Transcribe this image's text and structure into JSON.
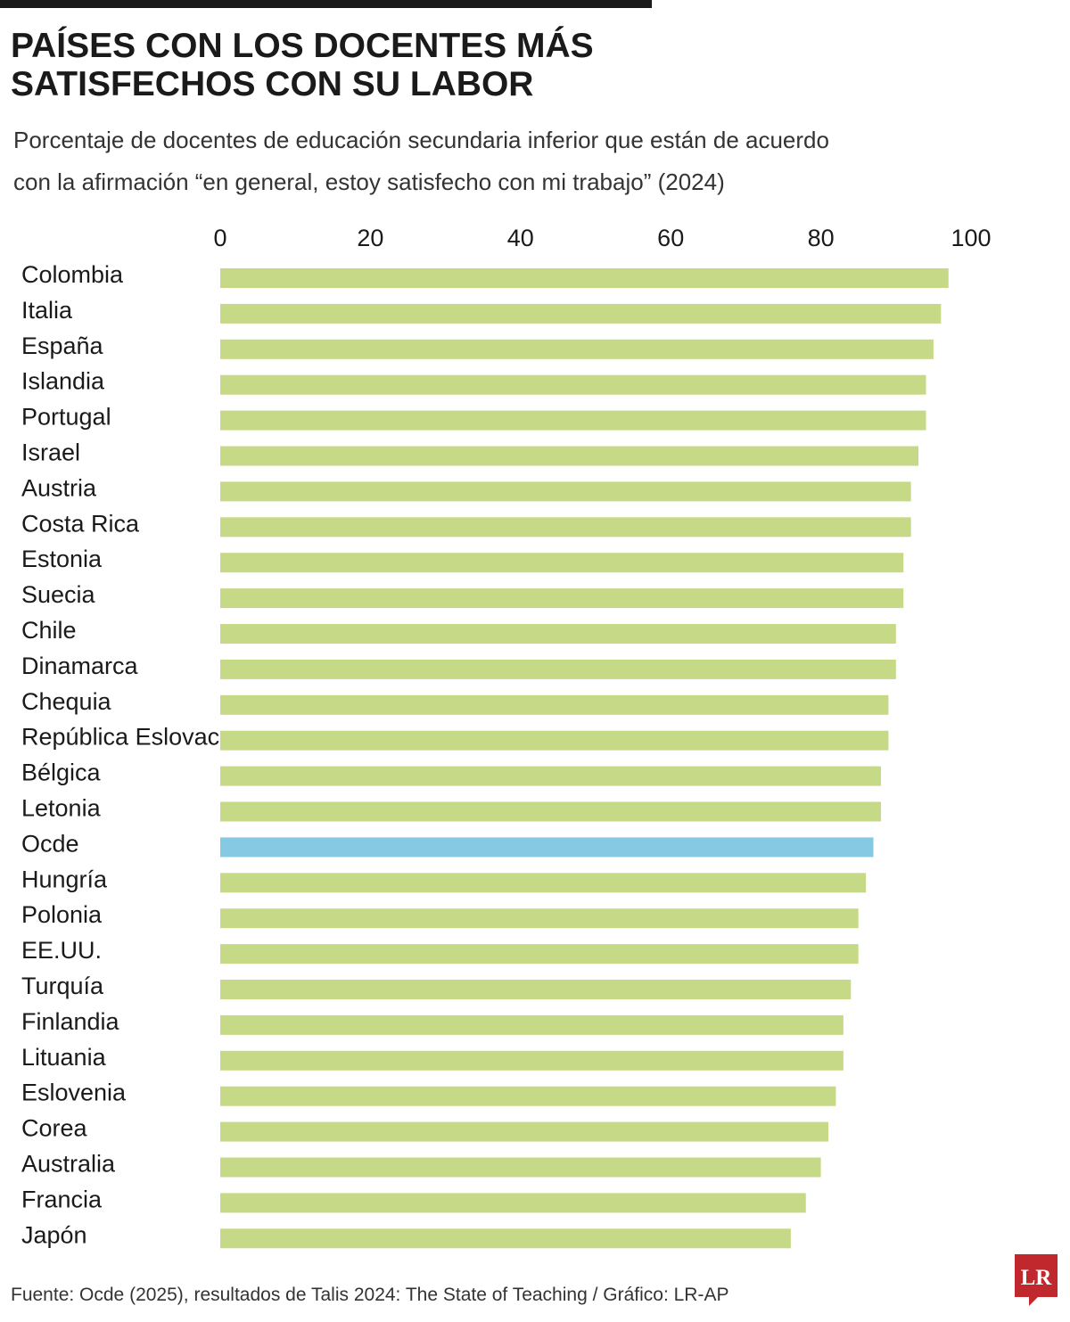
{
  "chart_data": {
    "type": "bar",
    "orientation": "horizontal",
    "title": "PAÍSES CON LOS DOCENTES MÁS SATISFECHOS CON SU LABOR",
    "title_lines": [
      "PAÍSES CON LOS DOCENTES MÁS",
      "SATISFECHOS CON SU LABOR"
    ],
    "subtitle": "Porcentaje de docentes de educación secundaria inferior que están de acuerdo con la afirmación “en general, estoy satisfecho con mi trabajo” (2024)",
    "subtitle_lines": [
      "Porcentaje de docentes de educación secundaria inferior que están de acuerdo",
      "con la afirmación “en general, estoy satisfecho con mi trabajo” (2024)"
    ],
    "categories": [
      "Colombia",
      "Italia",
      "España",
      "Islandia",
      "Portugal",
      "Israel",
      "Austria",
      "Costa Rica",
      "Estonia",
      "Suecia",
      "Chile",
      "Dinamarca",
      "Chequia",
      "República Eslovaca",
      "Bélgica",
      "Letonia",
      "Ocde",
      "Hungría",
      "Polonia",
      "EE.UU.",
      "Turquía",
      "Finlandia",
      "Lituania",
      "Eslovenia",
      "Corea",
      "Australia",
      "Francia",
      "Japón"
    ],
    "values": [
      97,
      96,
      95,
      94,
      94,
      93,
      92,
      92,
      91,
      91,
      90,
      90,
      89,
      89,
      88,
      88,
      87,
      86,
      85,
      85,
      84,
      83,
      83,
      82,
      81,
      80,
      78,
      76
    ],
    "highlight": "Ocde",
    "xlim": [
      0,
      100
    ],
    "xticks": [
      0,
      20,
      40,
      60,
      80,
      100
    ],
    "xtick_labels": [
      "0",
      "20",
      "40",
      "60",
      "80",
      "100"
    ],
    "xlabel": "",
    "ylabel": "",
    "grid": false,
    "legend": "none",
    "colors": {
      "bar": "#c6d986",
      "highlight": "#86c9e2",
      "text": "#1a1a1a"
    }
  },
  "footer": {
    "source": "Fuente:  Ocde (2025), resultados de Talis 2024: The State of Teaching / Gráfico: LR-AP"
  },
  "logo": {
    "text": "LR",
    "color": "#c0282d"
  }
}
